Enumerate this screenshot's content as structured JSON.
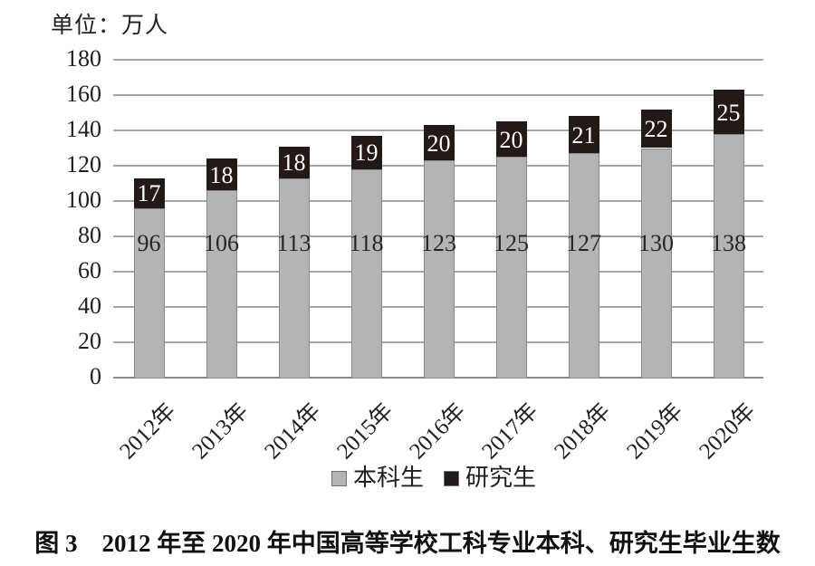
{
  "unit_label": "单位：万人",
  "caption": "图 3　2012 年至 2020 年中国高等学校工科专业本科、研究生毕业生数",
  "colors": {
    "undergrad_fill": "#b4b4b4",
    "grad_fill": "#231916",
    "gridline": "#a6a6a6",
    "background": "#ffffff",
    "text": "#1f1f1f"
  },
  "legend": {
    "items": [
      {
        "label": "本科生",
        "color": "#b4b4b4"
      },
      {
        "label": "研究生",
        "color": "#231916"
      }
    ]
  },
  "chart_data": {
    "type": "bar",
    "stacked": true,
    "title": "图 3 2012 年至 2020 年中国高等学校工科专业本科、研究生毕业生数",
    "unit": "万人",
    "categories": [
      "2012年",
      "2013年",
      "2014年",
      "2015年",
      "2016年",
      "2017年",
      "2018年",
      "2019年",
      "2020年"
    ],
    "series": [
      {
        "name": "本科生",
        "color": "#b4b4b4",
        "values": [
          96,
          106,
          113,
          118,
          123,
          125,
          127,
          130,
          138
        ]
      },
      {
        "name": "研究生",
        "color": "#231916",
        "values": [
          17,
          18,
          18,
          19,
          20,
          20,
          21,
          22,
          25
        ]
      }
    ],
    "totals": [
      113,
      124,
      131,
      137,
      143,
      145,
      148,
      152,
      163
    ],
    "ylim": [
      0,
      180
    ],
    "ytick_interval": 20,
    "grid": true,
    "legend_position": "bottom",
    "xlabel": "",
    "ylabel": "单位：万人"
  }
}
